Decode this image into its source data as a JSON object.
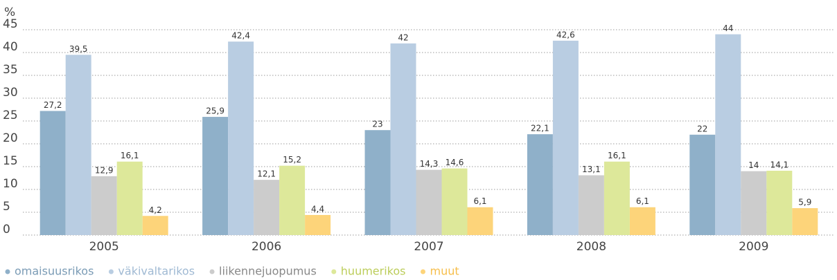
{
  "chart_data": {
    "type": "bar",
    "y_label": "%",
    "categories": [
      "2005",
      "2006",
      "2007",
      "2008",
      "2009"
    ],
    "series": [
      {
        "name": "omaisuusrikos",
        "color": "#8fb0c9",
        "values": [
          27.2,
          25.9,
          23,
          22.1,
          22
        ],
        "value_labels": [
          "27,2",
          "25,9",
          "23",
          "22,1",
          "22"
        ]
      },
      {
        "name": "väkivaltarikos",
        "color": "#b9cde2",
        "values": [
          39.5,
          42.4,
          42,
          42.6,
          44
        ],
        "value_labels": [
          "39,5",
          "42,4",
          "42",
          "42,6",
          "44"
        ]
      },
      {
        "name": "liikennejuopumus",
        "color": "#cccccc",
        "values": [
          12.9,
          12.1,
          14.3,
          13.1,
          14
        ],
        "value_labels": [
          "12,9",
          "12,1",
          "14,3",
          "13,1",
          "14"
        ]
      },
      {
        "name": "huumerikos",
        "color": "#dde89a",
        "values": [
          16.1,
          15.2,
          14.6,
          16.1,
          14.1
        ],
        "value_labels": [
          "16,1",
          "15,2",
          "14,6",
          "16,1",
          "14,1"
        ]
      },
      {
        "name": "muut",
        "color": "#fdd47a",
        "values": [
          4.2,
          4.4,
          6.1,
          6.1,
          5.9
        ],
        "value_labels": [
          "4,2",
          "4,4",
          "6,1",
          "6,1",
          "5,9"
        ]
      }
    ],
    "ylim": [
      0,
      45
    ],
    "yticks": [
      0,
      5,
      10,
      15,
      20,
      25,
      30,
      35,
      40,
      45
    ],
    "grid": true,
    "legend": "bottom"
  }
}
